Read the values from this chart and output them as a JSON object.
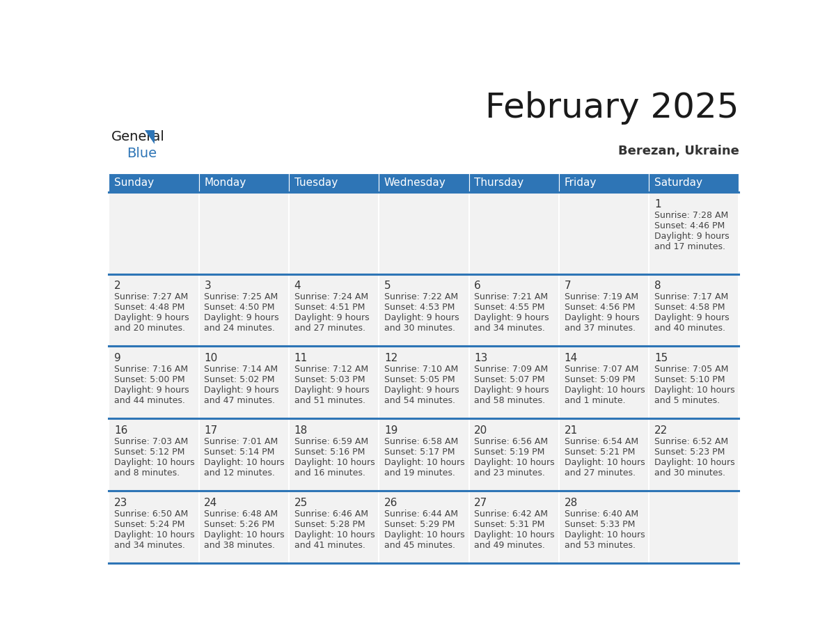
{
  "title": "February 2025",
  "subtitle": "Berezan, Ukraine",
  "days_of_week": [
    "Sunday",
    "Monday",
    "Tuesday",
    "Wednesday",
    "Thursday",
    "Friday",
    "Saturday"
  ],
  "header_bg": "#2e75b6",
  "header_text": "#ffffff",
  "cell_bg": "#f2f2f2",
  "divider_color": "#2e75b6",
  "day_number_color": "#333333",
  "info_text_color": "#444444",
  "title_color": "#1a1a1a",
  "subtitle_color": "#333333",
  "logo_black": "#1a1a1a",
  "logo_blue": "#2e75b6",
  "calendar_data": [
    [
      null,
      null,
      null,
      null,
      null,
      null,
      {
        "day": 1,
        "sunrise": "7:28 AM",
        "sunset": "4:46 PM",
        "daylight": "9 hours\nand 17 minutes."
      }
    ],
    [
      {
        "day": 2,
        "sunrise": "7:27 AM",
        "sunset": "4:48 PM",
        "daylight": "9 hours\nand 20 minutes."
      },
      {
        "day": 3,
        "sunrise": "7:25 AM",
        "sunset": "4:50 PM",
        "daylight": "9 hours\nand 24 minutes."
      },
      {
        "day": 4,
        "sunrise": "7:24 AM",
        "sunset": "4:51 PM",
        "daylight": "9 hours\nand 27 minutes."
      },
      {
        "day": 5,
        "sunrise": "7:22 AM",
        "sunset": "4:53 PM",
        "daylight": "9 hours\nand 30 minutes."
      },
      {
        "day": 6,
        "sunrise": "7:21 AM",
        "sunset": "4:55 PM",
        "daylight": "9 hours\nand 34 minutes."
      },
      {
        "day": 7,
        "sunrise": "7:19 AM",
        "sunset": "4:56 PM",
        "daylight": "9 hours\nand 37 minutes."
      },
      {
        "day": 8,
        "sunrise": "7:17 AM",
        "sunset": "4:58 PM",
        "daylight": "9 hours\nand 40 minutes."
      }
    ],
    [
      {
        "day": 9,
        "sunrise": "7:16 AM",
        "sunset": "5:00 PM",
        "daylight": "9 hours\nand 44 minutes."
      },
      {
        "day": 10,
        "sunrise": "7:14 AM",
        "sunset": "5:02 PM",
        "daylight": "9 hours\nand 47 minutes."
      },
      {
        "day": 11,
        "sunrise": "7:12 AM",
        "sunset": "5:03 PM",
        "daylight": "9 hours\nand 51 minutes."
      },
      {
        "day": 12,
        "sunrise": "7:10 AM",
        "sunset": "5:05 PM",
        "daylight": "9 hours\nand 54 minutes."
      },
      {
        "day": 13,
        "sunrise": "7:09 AM",
        "sunset": "5:07 PM",
        "daylight": "9 hours\nand 58 minutes."
      },
      {
        "day": 14,
        "sunrise": "7:07 AM",
        "sunset": "5:09 PM",
        "daylight": "10 hours\nand 1 minute."
      },
      {
        "day": 15,
        "sunrise": "7:05 AM",
        "sunset": "5:10 PM",
        "daylight": "10 hours\nand 5 minutes."
      }
    ],
    [
      {
        "day": 16,
        "sunrise": "7:03 AM",
        "sunset": "5:12 PM",
        "daylight": "10 hours\nand 8 minutes."
      },
      {
        "day": 17,
        "sunrise": "7:01 AM",
        "sunset": "5:14 PM",
        "daylight": "10 hours\nand 12 minutes."
      },
      {
        "day": 18,
        "sunrise": "6:59 AM",
        "sunset": "5:16 PM",
        "daylight": "10 hours\nand 16 minutes."
      },
      {
        "day": 19,
        "sunrise": "6:58 AM",
        "sunset": "5:17 PM",
        "daylight": "10 hours\nand 19 minutes."
      },
      {
        "day": 20,
        "sunrise": "6:56 AM",
        "sunset": "5:19 PM",
        "daylight": "10 hours\nand 23 minutes."
      },
      {
        "day": 21,
        "sunrise": "6:54 AM",
        "sunset": "5:21 PM",
        "daylight": "10 hours\nand 27 minutes."
      },
      {
        "day": 22,
        "sunrise": "6:52 AM",
        "sunset": "5:23 PM",
        "daylight": "10 hours\nand 30 minutes."
      }
    ],
    [
      {
        "day": 23,
        "sunrise": "6:50 AM",
        "sunset": "5:24 PM",
        "daylight": "10 hours\nand 34 minutes."
      },
      {
        "day": 24,
        "sunrise": "6:48 AM",
        "sunset": "5:26 PM",
        "daylight": "10 hours\nand 38 minutes."
      },
      {
        "day": 25,
        "sunrise": "6:46 AM",
        "sunset": "5:28 PM",
        "daylight": "10 hours\nand 41 minutes."
      },
      {
        "day": 26,
        "sunrise": "6:44 AM",
        "sunset": "5:29 PM",
        "daylight": "10 hours\nand 45 minutes."
      },
      {
        "day": 27,
        "sunrise": "6:42 AM",
        "sunset": "5:31 PM",
        "daylight": "10 hours\nand 49 minutes."
      },
      {
        "day": 28,
        "sunrise": "6:40 AM",
        "sunset": "5:33 PM",
        "daylight": "10 hours\nand 53 minutes."
      },
      null
    ]
  ]
}
